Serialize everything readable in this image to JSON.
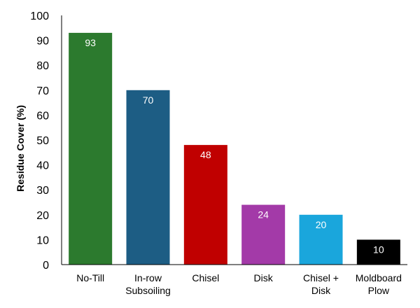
{
  "chart_data": {
    "type": "bar",
    "title": "",
    "xlabel": "",
    "ylabel": "Residue Cover (%)",
    "ylim": [
      0,
      100
    ],
    "yticks": [
      0,
      10,
      20,
      30,
      40,
      50,
      60,
      70,
      80,
      90,
      100
    ],
    "grid": false,
    "legend": "none",
    "categories": [
      [
        "No-Till"
      ],
      [
        "In-row",
        "Subsoiling"
      ],
      [
        "Chisel"
      ],
      [
        "Disk"
      ],
      [
        "Chisel +",
        "Disk"
      ],
      [
        "Moldboard",
        "Plow"
      ]
    ],
    "values": [
      93,
      70,
      48,
      24,
      20,
      10
    ],
    "colors": [
      "#2c7a2e",
      "#1d5d84",
      "#c00000",
      "#a33aa8",
      "#1aa6dc",
      "#000000"
    ]
  }
}
